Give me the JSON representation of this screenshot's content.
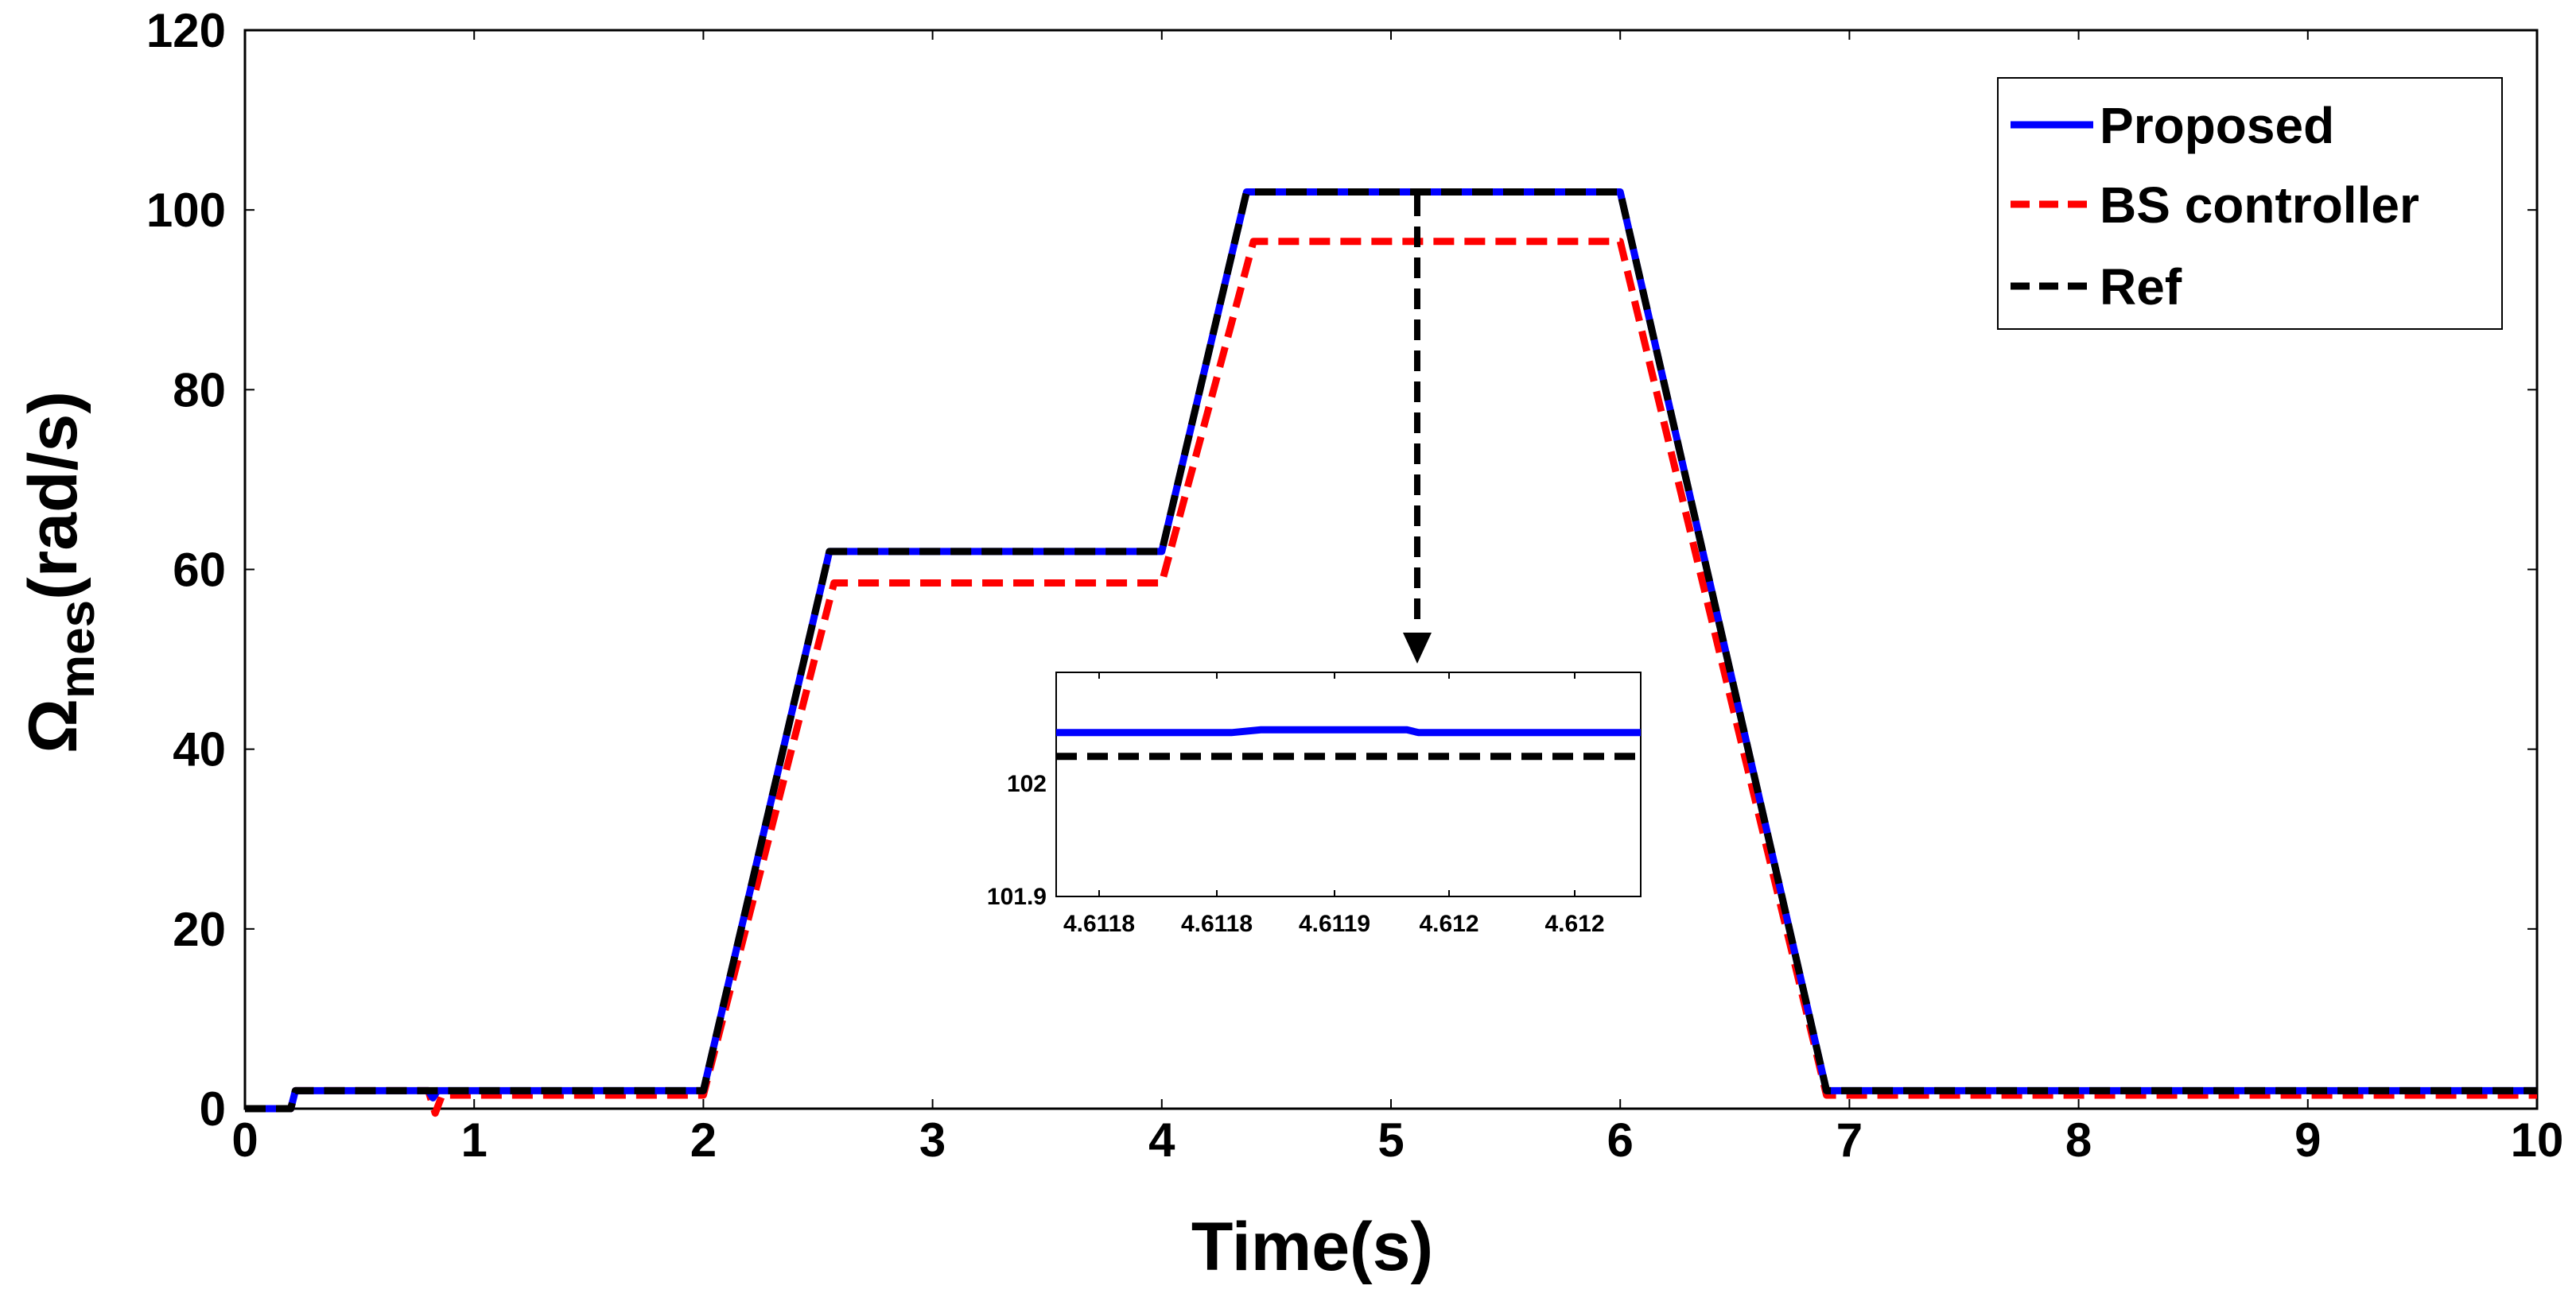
{
  "chart_data": {
    "type": "line",
    "xlabel": "Time(s)",
    "ylabel": {
      "main": "Ω",
      "sub": "mes",
      "unit": "(rad/s)"
    },
    "xlim": [
      0,
      10
    ],
    "ylim": [
      0,
      120
    ],
    "x_ticks": [
      "0",
      "1",
      "2",
      "3",
      "4",
      "5",
      "6",
      "7",
      "8",
      "9",
      "10"
    ],
    "y_ticks": [
      "0",
      "20",
      "40",
      "60",
      "80",
      "100",
      "120"
    ],
    "grid": false,
    "legend_position": "top-right",
    "series": [
      {
        "name": "Proposed",
        "color": "#0000ff",
        "style": "solid",
        "x": [
          0,
          0.2,
          0.22,
          0.8,
          0.82,
          0.84,
          2.0,
          2.55,
          4.0,
          4.37,
          6.0,
          6.9,
          10.0
        ],
        "y": [
          0,
          0,
          2,
          2,
          1.2,
          2,
          2,
          62,
          62,
          102,
          102,
          2,
          2
        ]
      },
      {
        "name": "BS controller",
        "color": "#ff0000",
        "style": "dashed",
        "x": [
          0,
          0.2,
          0.22,
          0.8,
          0.83,
          0.86,
          2.0,
          2.57,
          4.0,
          4.4,
          6.0,
          6.9,
          10.0
        ],
        "y": [
          0,
          0,
          2,
          2,
          -0.5,
          1.5,
          1.5,
          58.5,
          58.5,
          96.5,
          96.5,
          1.5,
          1.5
        ]
      },
      {
        "name": "Ref",
        "color": "#000000",
        "style": "dashed",
        "x": [
          0,
          0.2,
          0.22,
          2.0,
          2.55,
          4.0,
          4.37,
          6.0,
          6.9,
          10.0
        ],
        "y": [
          0,
          0,
          2,
          2,
          62,
          62,
          102,
          102,
          2,
          2
        ]
      }
    ],
    "inset": {
      "x_ticks": [
        "4.6118",
        "4.6118",
        "4.6119",
        "4.612",
        "4.612"
      ],
      "y_ticks": [
        "102",
        "101.9"
      ],
      "ylim": [
        101.9,
        102.06
      ],
      "series": [
        {
          "name": "Proposed",
          "x": [
            0,
            0.3,
            0.35,
            0.6,
            0.62,
            1.0
          ],
          "y": [
            102.017,
            102.017,
            102.019,
            102.019,
            102.017,
            102.017
          ]
        },
        {
          "name": "Ref",
          "x": [
            0,
            1.0
          ],
          "y": [
            102.0,
            102.0
          ]
        }
      ]
    }
  }
}
